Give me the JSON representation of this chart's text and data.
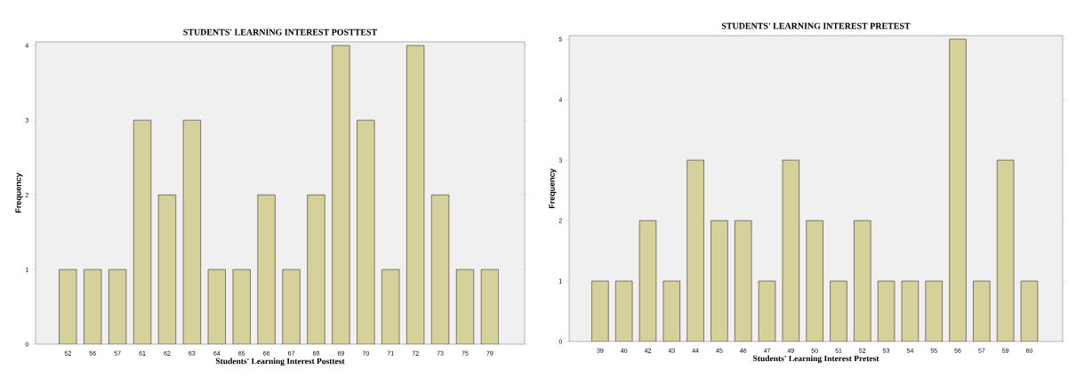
{
  "chart_data": [
    {
      "type": "bar",
      "title": "STUDENTS' LEARNING INTEREST POSTTEST",
      "xlabel": "Students' Learning Interest Posttest",
      "ylabel": "Frequency",
      "categories": [
        "52",
        "56",
        "57",
        "61",
        "62",
        "63",
        "64",
        "65",
        "66",
        "67",
        "68",
        "69",
        "70",
        "71",
        "72",
        "73",
        "75",
        "79"
      ],
      "values": [
        1,
        1,
        1,
        3,
        2,
        3,
        1,
        1,
        2,
        1,
        2,
        4,
        3,
        1,
        4,
        2,
        1,
        1
      ],
      "color": "#d6d09a",
      "ylim": [
        0,
        4.05
      ],
      "yticks": [
        0,
        1,
        2,
        3,
        4
      ],
      "grid": false
    },
    {
      "type": "bar",
      "title": "STUDENTS' LEARNING INTEREST PRETEST",
      "xlabel": "Students' Learning Interest Pretest",
      "ylabel": "Frequency",
      "categories": [
        "39",
        "40",
        "42",
        "43",
        "44",
        "45",
        "46",
        "47",
        "49",
        "50",
        "51",
        "52",
        "53",
        "54",
        "55",
        "56",
        "57",
        "59",
        "60"
      ],
      "values": [
        1,
        1,
        2,
        1,
        3,
        2,
        2,
        1,
        3,
        2,
        1,
        2,
        1,
        1,
        1,
        5,
        1,
        3,
        1
      ],
      "color": "#d6d09a",
      "ylim": [
        0,
        5.06
      ],
      "yticks": [
        0,
        1,
        2,
        3,
        4,
        5
      ],
      "grid": false
    }
  ]
}
